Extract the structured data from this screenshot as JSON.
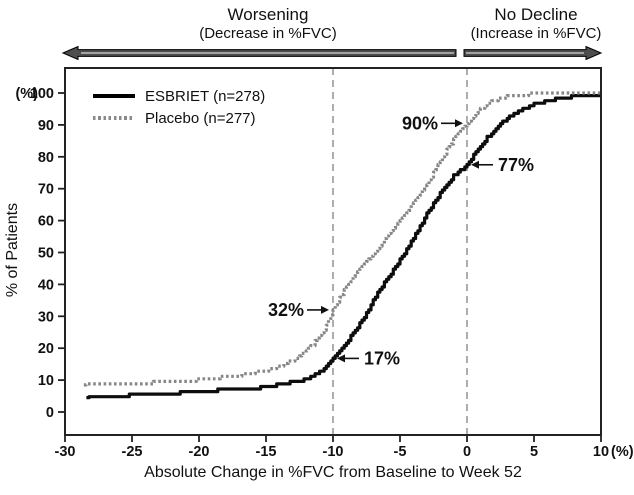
{
  "header": {
    "left_label": {
      "title": "Worsening",
      "subtitle": "(Decrease in %FVC)"
    },
    "right_label": {
      "title": "No Decline",
      "subtitle": "(Increase in %FVC)"
    }
  },
  "chart_data": {
    "type": "line",
    "subtype": "cumulative-distribution-step-curves",
    "xlabel": "Absolute Change in %FVC from Baseline to Week 52",
    "ylabel": "% of Patients",
    "x_unit": "(%)",
    "y_unit": "(%)",
    "xlim": [
      -30,
      10
    ],
    "ylim": [
      0,
      100
    ],
    "x_ticks": [
      -30,
      -25,
      -20,
      -15,
      -10,
      -5,
      0,
      5,
      10
    ],
    "y_ticks": [
      0,
      10,
      20,
      30,
      40,
      50,
      60,
      70,
      80,
      90,
      100
    ],
    "grid": false,
    "legend_position": "top-left-inside",
    "reference_lines_x": [
      -10,
      0
    ],
    "series": [
      {
        "id": "esbriet",
        "name": "ESBRIET (n=278)",
        "style": "solid",
        "color": "#0d0d0d",
        "points": [
          [
            -28.4,
            4.5
          ],
          [
            -27,
            4.8
          ],
          [
            -26,
            5.0
          ],
          [
            -25,
            5.3
          ],
          [
            -24,
            5.5
          ],
          [
            -23,
            5.7
          ],
          [
            -22,
            5.9
          ],
          [
            -21,
            6.1
          ],
          [
            -20,
            6.4
          ],
          [
            -19,
            6.7
          ],
          [
            -18,
            7.0
          ],
          [
            -17,
            7.2
          ],
          [
            -16,
            7.4
          ],
          [
            -15,
            7.8
          ],
          [
            -14,
            8.7
          ],
          [
            -13,
            9.4
          ],
          [
            -12.5,
            9.8
          ],
          [
            -12,
            10.3
          ],
          [
            -11.5,
            11.2
          ],
          [
            -11,
            12.5
          ],
          [
            -10.5,
            14.2
          ],
          [
            -10,
            16.8
          ],
          [
            -9.5,
            19.2
          ],
          [
            -9,
            21.8
          ],
          [
            -8.5,
            24.5
          ],
          [
            -8,
            27.6
          ],
          [
            -7.5,
            31.0
          ],
          [
            -7,
            35.0
          ],
          [
            -6.5,
            38.5
          ],
          [
            -6,
            41.5
          ],
          [
            -5.5,
            44.5
          ],
          [
            -5,
            47.7
          ],
          [
            -4.5,
            51.0
          ],
          [
            -4,
            54.5
          ],
          [
            -3.5,
            58.0
          ],
          [
            -3,
            62.0
          ],
          [
            -2.5,
            65.5
          ],
          [
            -2,
            68.5
          ],
          [
            -1.5,
            71.5
          ],
          [
            -1,
            74.0
          ],
          [
            -0.5,
            75.8
          ],
          [
            0,
            77.5
          ],
          [
            0.5,
            80.5
          ],
          [
            1,
            83.5
          ],
          [
            1.5,
            86.0
          ],
          [
            2,
            88.3
          ],
          [
            2.5,
            90.3
          ],
          [
            3,
            92.0
          ],
          [
            3.5,
            93.4
          ],
          [
            4,
            94.6
          ],
          [
            4.5,
            95.6
          ],
          [
            5,
            96.4
          ],
          [
            6,
            97.4
          ],
          [
            7,
            98.4
          ],
          [
            8,
            99.0
          ],
          [
            9,
            99.3
          ],
          [
            10,
            99.6
          ]
        ]
      },
      {
        "id": "placebo",
        "name": "Placebo (n=277)",
        "style": "dotted",
        "color": "#878787",
        "points": [
          [
            -28.6,
            8.5
          ],
          [
            -27,
            8.7
          ],
          [
            -26,
            8.8
          ],
          [
            -25,
            9.0
          ],
          [
            -24,
            9.1
          ],
          [
            -23,
            9.3
          ],
          [
            -22,
            9.5
          ],
          [
            -21,
            9.8
          ],
          [
            -20,
            10.1
          ],
          [
            -19,
            10.5
          ],
          [
            -18,
            11.0
          ],
          [
            -17,
            11.6
          ],
          [
            -16,
            12.3
          ],
          [
            -15,
            13.1
          ],
          [
            -14,
            14.4
          ],
          [
            -13.5,
            15.3
          ],
          [
            -13,
            16.3
          ],
          [
            -12.5,
            17.6
          ],
          [
            -12,
            19.2
          ],
          [
            -11.5,
            21.2
          ],
          [
            -11,
            23.6
          ],
          [
            -10.5,
            27.0
          ],
          [
            -10,
            32.0
          ],
          [
            -9.5,
            36.0
          ],
          [
            -9,
            39.3
          ],
          [
            -8.5,
            42.0
          ],
          [
            -8,
            44.6
          ],
          [
            -7.5,
            47.0
          ],
          [
            -7,
            49.5
          ],
          [
            -6.5,
            52.2
          ],
          [
            -6,
            55.0
          ],
          [
            -5.5,
            57.5
          ],
          [
            -5,
            60.0
          ],
          [
            -4.5,
            62.6
          ],
          [
            -4,
            65.3
          ],
          [
            -3.5,
            68.2
          ],
          [
            -3,
            71.5
          ],
          [
            -2.5,
            75.0
          ],
          [
            -2,
            78.6
          ],
          [
            -1.5,
            82.0
          ],
          [
            -1,
            85.2
          ],
          [
            -0.5,
            88.0
          ],
          [
            0,
            90.5
          ],
          [
            0.5,
            93.0
          ],
          [
            1,
            95.0
          ],
          [
            1.5,
            96.6
          ],
          [
            2,
            97.6
          ],
          [
            2.5,
            98.3
          ],
          [
            3,
            98.9
          ],
          [
            3.5,
            99.3
          ],
          [
            4,
            99.5
          ],
          [
            5,
            99.7
          ],
          [
            6,
            99.8
          ],
          [
            7,
            99.9
          ],
          [
            8,
            100
          ],
          [
            10,
            100
          ]
        ]
      }
    ],
    "annotations": [
      {
        "label": "90%",
        "x": 0,
        "y": 90.5,
        "series": "placebo",
        "text_side": "left"
      },
      {
        "label": "77%",
        "x": 0,
        "y": 77.5,
        "series": "esbriet",
        "text_side": "right"
      },
      {
        "label": "32%",
        "x": -10,
        "y": 32.0,
        "series": "placebo",
        "text_side": "left"
      },
      {
        "label": "17%",
        "x": -10,
        "y": 16.8,
        "series": "esbriet",
        "text_side": "right"
      }
    ]
  }
}
